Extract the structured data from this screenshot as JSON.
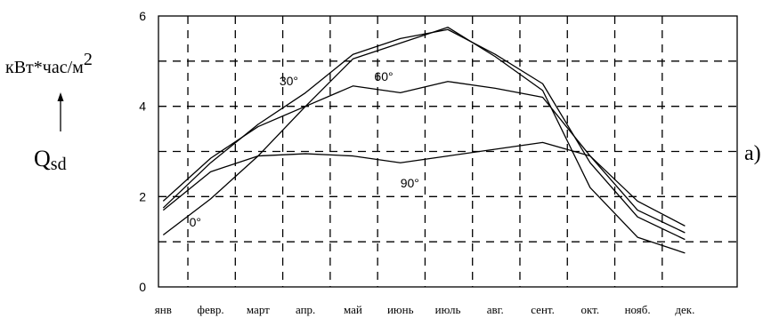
{
  "chart_data": {
    "type": "line",
    "title": "",
    "ylabel": "кВт*час/м",
    "ylabel_sup": "2",
    "ylabel_symbol": "Q",
    "ylabel_symbol_sub": "sd",
    "panel_label": "а)",
    "ylim": [
      0,
      6
    ],
    "yticks": [
      0,
      2,
      4,
      6
    ],
    "grid": true,
    "categories": [
      "янв",
      "февр.",
      "март",
      "апр.",
      "май",
      "июнь",
      "июль",
      "авг.",
      "сент.",
      "окт.",
      "нояб.",
      "дек."
    ],
    "series": [
      {
        "name": "0°",
        "values": [
          1.15,
          1.95,
          2.9,
          4.0,
          5.05,
          5.4,
          5.75,
          5.1,
          4.35,
          2.2,
          1.1,
          0.75
        ]
      },
      {
        "name": "30°",
        "values": [
          1.75,
          2.75,
          3.6,
          4.3,
          5.15,
          5.5,
          5.7,
          5.15,
          4.5,
          2.75,
          1.55,
          1.05
        ]
      },
      {
        "name": "60°",
        "values": [
          1.9,
          2.85,
          3.55,
          4.0,
          4.45,
          4.3,
          4.55,
          4.4,
          4.2,
          2.9,
          1.7,
          1.2
        ]
      },
      {
        "name": "90°",
        "values": [
          1.7,
          2.55,
          2.9,
          2.95,
          2.9,
          2.75,
          2.9,
          3.05,
          3.2,
          2.9,
          1.9,
          1.35
        ]
      }
    ]
  }
}
